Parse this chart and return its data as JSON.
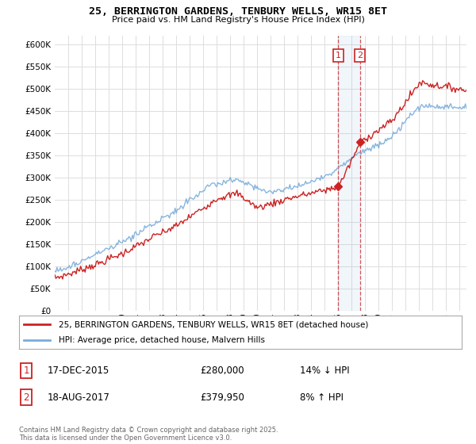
{
  "title": "25, BERRINGTON GARDENS, TENBURY WELLS, WR15 8ET",
  "subtitle": "Price paid vs. HM Land Registry's House Price Index (HPI)",
  "ylim": [
    0,
    620000
  ],
  "yticks": [
    0,
    50000,
    100000,
    150000,
    200000,
    250000,
    300000,
    350000,
    400000,
    450000,
    500000,
    550000,
    600000
  ],
  "xlim_year": [
    1995.0,
    2025.5
  ],
  "background_color": "#ffffff",
  "grid_color": "#dddddd",
  "hpi_color": "#7aaddb",
  "price_color": "#cc2222",
  "t1_year": 2016.0,
  "t2_year": 2017.6,
  "t1_price": 280000,
  "t2_price": 379950,
  "transaction1": {
    "date": "17-DEC-2015",
    "price": "£280,000",
    "change": "14% ↓ HPI",
    "label": "1"
  },
  "transaction2": {
    "date": "18-AUG-2017",
    "price": "£379,950",
    "change": "8% ↑ HPI",
    "label": "2"
  },
  "legend_property": "25, BERRINGTON GARDENS, TENBURY WELLS, WR15 8ET (detached house)",
  "legend_hpi": "HPI: Average price, detached house, Malvern Hills",
  "footnote": "Contains HM Land Registry data © Crown copyright and database right 2025.\nThis data is licensed under the Open Government Licence v3.0."
}
